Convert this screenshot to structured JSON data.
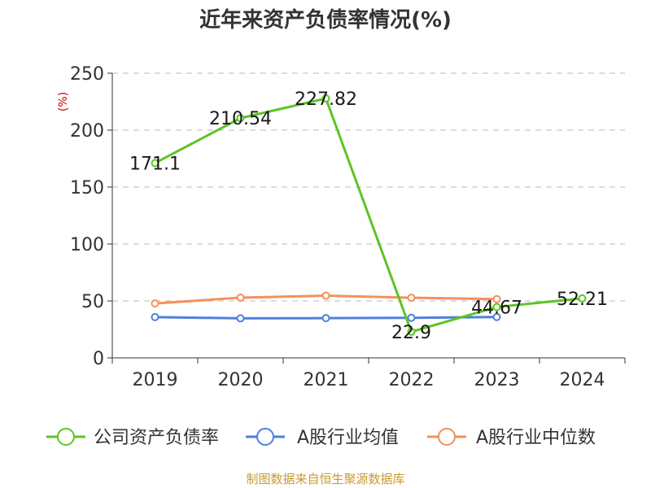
{
  "chart_data": {
    "type": "line",
    "title": "近年来资产负债率情况(%)",
    "ylabel": "(%)",
    "ylim": [
      0,
      250
    ],
    "yticks": [
      0,
      50,
      100,
      150,
      200,
      250
    ],
    "categories": [
      "2019",
      "2020",
      "2021",
      "2022",
      "2023",
      "2024"
    ],
    "grid": true,
    "legend_position": "bottom",
    "series": [
      {
        "name": "公司资产负债率",
        "color": "#5cc523",
        "values": [
          171.1,
          210.54,
          227.82,
          22.9,
          44.67,
          52.21
        ],
        "labels": [
          "171.1",
          "210.54",
          "227.82",
          "22.9",
          "44.67",
          "52.21"
        ]
      },
      {
        "name": "A股行业均值",
        "color": "#4f7fdf",
        "values": [
          35.8,
          34.7,
          34.9,
          35.2,
          35.9,
          null
        ]
      },
      {
        "name": "A股行业中位数",
        "color": "#f5905a",
        "values": [
          47.8,
          52.9,
          54.6,
          52.8,
          51.6,
          null
        ]
      }
    ]
  },
  "source": "制图数据来自恒生聚源数据库"
}
